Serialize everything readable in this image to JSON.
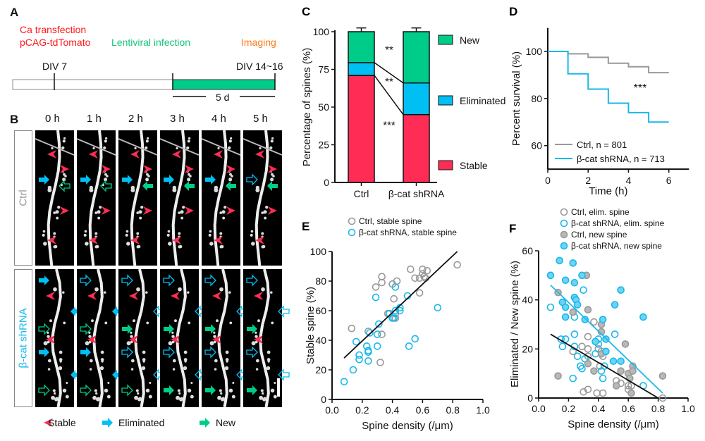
{
  "colors": {
    "stable": "#ff2d55",
    "eliminated": "#00bff3",
    "new": "#00cc8a",
    "ctrl": "#999999",
    "shrna": "#1ab8ea",
    "red_text": "#ff1a1a",
    "green_text": "#19c47c",
    "orange_text": "#ff7a1a"
  },
  "panelA": {
    "label": "A",
    "ca_line1": "Ca transfection",
    "ca_line2": "pCAG-tdTomato",
    "lenti": "Lentiviral infection",
    "imaging": "Imaging",
    "div7": "DIV 7",
    "div14": "DIV 14~16",
    "duration": "5 d"
  },
  "panelB": {
    "label": "B",
    "times": [
      "0 h",
      "1 h",
      "2 h",
      "3 h",
      "4 h",
      "5 h"
    ],
    "row_ctrl": "Ctrl",
    "row_shrna": "β-cat shRNA",
    "legend": [
      {
        "icon": "arrowhead-icon",
        "label": "Stable"
      },
      {
        "icon": "arrow-icon",
        "label": "Eliminated"
      },
      {
        "icon": "arrow-icon",
        "label": "New"
      }
    ]
  },
  "chart_data": [
    {
      "id": "C",
      "label": "C",
      "type": "bar",
      "stacked": true,
      "categories": [
        "Ctrl",
        "β-cat shRNA"
      ],
      "series": [
        {
          "name": "Stable",
          "values": [
            71,
            45
          ],
          "err": [
            4,
            3.5
          ]
        },
        {
          "name": "Eliminated",
          "values": [
            8.5,
            21
          ],
          "err": [
            1.5,
            1.5
          ]
        },
        {
          "name": "New",
          "values": [
            20.5,
            34
          ],
          "err": [
            2.5,
            2.5
          ]
        }
      ],
      "ylabel": "Percentage of spines (%)",
      "ylim": [
        0,
        100
      ],
      "yticks": [
        "0",
        "25",
        "50",
        "75",
        "100"
      ],
      "significance": [
        "**",
        "**",
        "***"
      ],
      "legend": "right"
    },
    {
      "id": "D",
      "label": "D",
      "type": "line",
      "step": true,
      "xlabel": "Time (h)",
      "ylabel": "Percent survival (%)",
      "xlim": [
        0,
        7
      ],
      "ylim": [
        50,
        110
      ],
      "xticks": [
        "0",
        "2",
        "4",
        "6"
      ],
      "yticks": [
        "60",
        "80",
        "100"
      ],
      "x": [
        0,
        1,
        2,
        3,
        4,
        5,
        6
      ],
      "series": [
        {
          "name": "Ctrl, n = 801",
          "values": [
            100,
            99,
            97.5,
            95,
            93.5,
            91,
            91
          ]
        },
        {
          "name": "β-cat shRNA, n = 713",
          "values": [
            100,
            90.5,
            84,
            78,
            74,
            70,
            70
          ]
        }
      ],
      "annotation": "***",
      "legend": "bottom-left"
    },
    {
      "id": "E",
      "label": "E",
      "type": "scatter",
      "xlabel": "Spine density (/μm)",
      "ylabel": "Stable spine (%)",
      "xlim": [
        0,
        1
      ],
      "ylim": [
        0,
        100
      ],
      "xticks": [
        "0.0",
        "0.2",
        "0.4",
        "0.6",
        "0.8",
        "1.0"
      ],
      "yticks": [
        "0",
        "20",
        "40",
        "60",
        "80",
        "100"
      ],
      "legend": "top",
      "series": [
        {
          "name": "Ctrl, stable spine",
          "color": "#999999",
          "filled": false,
          "points": [
            [
              0.13,
              48
            ],
            [
              0.24,
              46
            ],
            [
              0.29,
              76
            ],
            [
              0.33,
              83
            ],
            [
              0.33,
              79
            ],
            [
              0.33,
              44
            ],
            [
              0.32,
              25
            ],
            [
              0.4,
              78
            ],
            [
              0.41,
              68
            ],
            [
              0.37,
              58
            ],
            [
              0.43,
              80
            ],
            [
              0.42,
              58
            ],
            [
              0.42,
              55
            ],
            [
              0.52,
              88
            ],
            [
              0.55,
              82
            ],
            [
              0.58,
              82
            ],
            [
              0.6,
              88
            ],
            [
              0.6,
              85
            ],
            [
              0.63,
              87
            ],
            [
              0.61,
              83
            ],
            [
              0.62,
              82
            ],
            [
              0.58,
              72
            ],
            [
              0.83,
              91
            ]
          ]
        },
        {
          "name": "β-cat shRNA, stable spine",
          "color": "#1ab8ea",
          "filled": false,
          "points": [
            [
              0.08,
              12
            ],
            [
              0.14,
              20
            ],
            [
              0.16,
              39
            ],
            [
              0.18,
              30
            ],
            [
              0.18,
              27
            ],
            [
              0.23,
              36
            ],
            [
              0.24,
              33
            ],
            [
              0.24,
              32
            ],
            [
              0.24,
              26
            ],
            [
              0.25,
              45
            ],
            [
              0.29,
              69
            ],
            [
              0.3,
              44
            ],
            [
              0.3,
              36
            ],
            [
              0.31,
              51
            ],
            [
              0.38,
              58
            ],
            [
              0.4,
              55
            ],
            [
              0.41,
              55
            ],
            [
              0.42,
              76
            ],
            [
              0.42,
              60
            ],
            [
              0.45,
              62
            ],
            [
              0.45,
              60
            ],
            [
              0.5,
              70
            ],
            [
              0.51,
              36
            ],
            [
              0.55,
              41
            ],
            [
              0.7,
              62
            ]
          ]
        }
      ],
      "fits": [
        {
          "color": "#111111",
          "from": [
            0.08,
            28
          ],
          "to": [
            0.83,
            100
          ]
        }
      ]
    },
    {
      "id": "F",
      "label": "F",
      "type": "scatter",
      "xlabel": "Spine density (/μm)",
      "ylabel": "Eliminated / New spine (%)",
      "xlim": [
        0,
        1
      ],
      "ylim": [
        0,
        60
      ],
      "xticks": [
        "0.0",
        "0.2",
        "0.4",
        "0.6",
        "0.8",
        "1.0"
      ],
      "yticks": [
        "0",
        "20",
        "40",
        "60"
      ],
      "legend": "top",
      "series": [
        {
          "name": "Ctrl, elim. spine",
          "color": "#999999",
          "filled": false,
          "points": [
            [
              0.23,
              19
            ],
            [
              0.29,
              21
            ],
            [
              0.33,
              25
            ],
            [
              0.33,
              20
            ],
            [
              0.33,
              17
            ],
            [
              0.37,
              31
            ],
            [
              0.42,
              19
            ],
            [
              0.43,
              17
            ],
            [
              0.4,
              20
            ],
            [
              0.41,
              13
            ],
            [
              0.52,
              7
            ],
            [
              0.55,
              6
            ],
            [
              0.6,
              5
            ],
            [
              0.62,
              5
            ],
            [
              0.3,
              2.5
            ],
            [
              0.33,
              3.5
            ],
            [
              0.39,
              2
            ],
            [
              0.43,
              2
            ],
            [
              0.6,
              3.5
            ],
            [
              0.83,
              0
            ]
          ]
        },
        {
          "name": "β-cat shRNA, elim. spine",
          "color": "#1ab8ea",
          "filled": false,
          "points": [
            [
              0.08,
              37
            ],
            [
              0.15,
              24
            ],
            [
              0.16,
              21
            ],
            [
              0.18,
              24
            ],
            [
              0.24,
              33
            ],
            [
              0.24,
              26
            ],
            [
              0.24,
              21
            ],
            [
              0.26,
              17
            ],
            [
              0.28,
              13
            ],
            [
              0.29,
              12
            ],
            [
              0.3,
              44
            ],
            [
              0.31,
              16
            ],
            [
              0.38,
              18
            ],
            [
              0.4,
              24
            ],
            [
              0.4,
              22
            ],
            [
              0.42,
              11
            ],
            [
              0.43,
              8
            ],
            [
              0.44,
              13
            ],
            [
              0.51,
              26
            ],
            [
              0.23,
              8
            ],
            [
              0.7,
              5
            ]
          ]
        },
        {
          "name": "Ctrl, new spine",
          "color": "#999999",
          "filled": true,
          "points": [
            [
              0.13,
              43
            ],
            [
              0.13,
              9
            ],
            [
              0.23,
              35
            ],
            [
              0.32,
              50
            ],
            [
              0.33,
              36
            ],
            [
              0.33,
              14
            ],
            [
              0.37,
              11
            ],
            [
              0.42,
              30
            ],
            [
              0.42,
              27
            ],
            [
              0.42,
              18
            ],
            [
              0.55,
              11
            ],
            [
              0.58,
              22
            ],
            [
              0.6,
              10
            ],
            [
              0.61,
              8
            ],
            [
              0.63,
              13
            ],
            [
              0.63,
              11
            ],
            [
              0.52,
              5
            ],
            [
              0.62,
              2
            ],
            [
              0.83,
              9
            ]
          ]
        },
        {
          "name": "β-cat shRNA, new spine",
          "color": "#1ab8ea",
          "filled": true,
          "points": [
            [
              0.08,
              50
            ],
            [
              0.14,
              56
            ],
            [
              0.16,
              39
            ],
            [
              0.18,
              48
            ],
            [
              0.18,
              37
            ],
            [
              0.18,
              33
            ],
            [
              0.23,
              55
            ],
            [
              0.24,
              47
            ],
            [
              0.24,
              41
            ],
            [
              0.25,
              40
            ],
            [
              0.26,
              38
            ],
            [
              0.29,
              50
            ],
            [
              0.31,
              32
            ],
            [
              0.38,
              23
            ],
            [
              0.43,
              32
            ],
            [
              0.45,
              24
            ],
            [
              0.45,
              19
            ],
            [
              0.5,
              15
            ],
            [
              0.51,
              38
            ],
            [
              0.55,
              44
            ],
            [
              0.55,
              15
            ],
            [
              0.7,
              33
            ]
          ]
        }
      ],
      "fits": [
        {
          "color": "#111111",
          "from": [
            0.08,
            26
          ],
          "to": [
            0.8,
            0
          ]
        },
        {
          "color": "#1ab8ea",
          "from": [
            0.08,
            46
          ],
          "to": [
            0.83,
            2
          ]
        }
      ]
    }
  ]
}
